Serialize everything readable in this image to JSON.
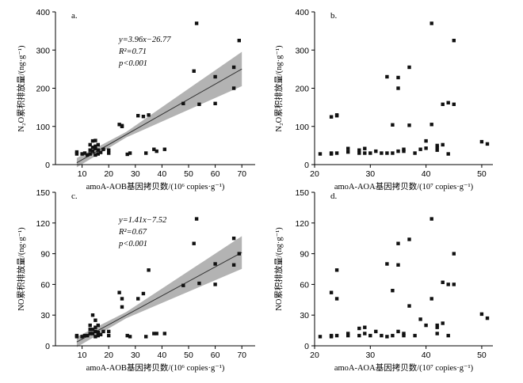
{
  "colors": {
    "point": "#111111",
    "band": "#a6a6a6",
    "fit": "#333333",
    "axis": "#000000"
  },
  "chart_data": [
    {
      "type": "scatter",
      "panel_label": "a.",
      "xlabel": "amoA-AOB基因拷贝数/(10⁶ copies·g⁻¹)",
      "ylabel": "N₂O累积排放量/(ng·g⁻¹)",
      "xlim": [
        0,
        75
      ],
      "ylim": [
        0,
        400
      ],
      "xticks": [
        10,
        20,
        30,
        40,
        50,
        60,
        70
      ],
      "yticks": [
        0,
        100,
        200,
        300,
        400
      ],
      "fit": {
        "slope": 3.96,
        "intercept": -26.77,
        "x_range": [
          8,
          70
        ],
        "ci_halfwidth_left": 12,
        "ci_halfwidth_right": 45
      },
      "equation": [
        "y=3.96x−26.77",
        "R²=0.71",
        "p<0.001"
      ],
      "points": [
        [
          8,
          33
        ],
        [
          8,
          28
        ],
        [
          10,
          28
        ],
        [
          11,
          30
        ],
        [
          12,
          25
        ],
        [
          13,
          28
        ],
        [
          13,
          38
        ],
        [
          13,
          52
        ],
        [
          14,
          62
        ],
        [
          14,
          45
        ],
        [
          14,
          35
        ],
        [
          15,
          42
        ],
        [
          15,
          48
        ],
        [
          15,
          63
        ],
        [
          15,
          25
        ],
        [
          16,
          28
        ],
        [
          16,
          38
        ],
        [
          16,
          52
        ],
        [
          17,
          32
        ],
        [
          18,
          40
        ],
        [
          20,
          38
        ],
        [
          20,
          30
        ],
        [
          24,
          105
        ],
        [
          25,
          100
        ],
        [
          25,
          102
        ],
        [
          27,
          27
        ],
        [
          28,
          30
        ],
        [
          31,
          128
        ],
        [
          33,
          126
        ],
        [
          34,
          30
        ],
        [
          35,
          130
        ],
        [
          37,
          40
        ],
        [
          38,
          35
        ],
        [
          41,
          40
        ],
        [
          48,
          160
        ],
        [
          52,
          245
        ],
        [
          53,
          370
        ],
        [
          54,
          158
        ],
        [
          60,
          230
        ],
        [
          60,
          160
        ],
        [
          67,
          255
        ],
        [
          67,
          200
        ],
        [
          69,
          325
        ]
      ]
    },
    {
      "type": "scatter",
      "panel_label": "b.",
      "xlabel": "amoA-AOA基因拷贝数/(10⁷ copies·g⁻¹)",
      "ylabel": "N₂O累积排放量/(ng·g⁻¹)",
      "xlim": [
        20,
        52
      ],
      "ylim": [
        0,
        400
      ],
      "xticks": [
        20,
        30,
        40,
        50
      ],
      "yticks": [
        0,
        100,
        200,
        300,
        400
      ],
      "points": [
        [
          21,
          28
        ],
        [
          23,
          28
        ],
        [
          23,
          125
        ],
        [
          23,
          30
        ],
        [
          24,
          130
        ],
        [
          24,
          128
        ],
        [
          24,
          30
        ],
        [
          26,
          33
        ],
        [
          26,
          42
        ],
        [
          28,
          38
        ],
        [
          28,
          30
        ],
        [
          29,
          42
        ],
        [
          29,
          30
        ],
        [
          30,
          30
        ],
        [
          31,
          35
        ],
        [
          32,
          30
        ],
        [
          33,
          230
        ],
        [
          33,
          30
        ],
        [
          34,
          104
        ],
        [
          34,
          30
        ],
        [
          35,
          228
        ],
        [
          35,
          35
        ],
        [
          35,
          200
        ],
        [
          36,
          40
        ],
        [
          36,
          35
        ],
        [
          37,
          255
        ],
        [
          37,
          103
        ],
        [
          38,
          30
        ],
        [
          39,
          40
        ],
        [
          40,
          62
        ],
        [
          40,
          43
        ],
        [
          41,
          370
        ],
        [
          41,
          105
        ],
        [
          42,
          50
        ],
        [
          42,
          45
        ],
        [
          42,
          38
        ],
        [
          43,
          158
        ],
        [
          43,
          52
        ],
        [
          44,
          162
        ],
        [
          44,
          28
        ],
        [
          45,
          325
        ],
        [
          45,
          158
        ],
        [
          50,
          60
        ],
        [
          51,
          54
        ]
      ]
    },
    {
      "type": "scatter",
      "panel_label": "c.",
      "xlabel": "amoA-AOB基因拷贝数/(10⁶ copies·g⁻¹)",
      "ylabel": "NO累积排放量/(ng·g⁻¹)",
      "xlim": [
        0,
        75
      ],
      "ylim": [
        0,
        150
      ],
      "xticks": [
        10,
        20,
        30,
        40,
        50,
        60,
        70
      ],
      "yticks": [
        0,
        30,
        60,
        90,
        120,
        150
      ],
      "fit": {
        "slope": 1.41,
        "intercept": -7.52,
        "x_range": [
          8,
          70
        ],
        "ci_halfwidth_left": 5,
        "ci_halfwidth_right": 16
      },
      "equation": [
        "y=1.41x−7.52",
        "R²=0.67",
        "p<0.001"
      ],
      "points": [
        [
          8,
          10
        ],
        [
          8,
          9
        ],
        [
          10,
          9
        ],
        [
          11,
          10
        ],
        [
          12,
          10
        ],
        [
          13,
          12
        ],
        [
          13,
          16
        ],
        [
          13,
          20
        ],
        [
          14,
          30
        ],
        [
          14,
          16
        ],
        [
          14,
          12
        ],
        [
          15,
          14
        ],
        [
          15,
          18
        ],
        [
          15,
          25
        ],
        [
          15,
          9
        ],
        [
          16,
          10
        ],
        [
          16,
          13
        ],
        [
          16,
          20
        ],
        [
          17,
          11
        ],
        [
          18,
          14
        ],
        [
          20,
          14
        ],
        [
          20,
          10
        ],
        [
          24,
          52
        ],
        [
          25,
          38
        ],
        [
          25,
          46
        ],
        [
          27,
          10
        ],
        [
          28,
          9
        ],
        [
          31,
          46
        ],
        [
          33,
          51
        ],
        [
          34,
          9
        ],
        [
          35,
          74
        ],
        [
          37,
          12
        ],
        [
          38,
          12
        ],
        [
          41,
          12
        ],
        [
          48,
          59
        ],
        [
          52,
          100
        ],
        [
          53,
          124
        ],
        [
          54,
          61
        ],
        [
          60,
          80
        ],
        [
          60,
          60
        ],
        [
          67,
          105
        ],
        [
          67,
          79
        ],
        [
          69,
          90
        ]
      ]
    },
    {
      "type": "scatter",
      "panel_label": "d.",
      "xlabel": "amoA-AOA基因拷贝数/(10⁷ copies·g⁻¹)",
      "ylabel": "NO累积排放量/(ng·g⁻¹)",
      "xlim": [
        20,
        52
      ],
      "ylim": [
        0,
        150
      ],
      "xticks": [
        20,
        30,
        40,
        50
      ],
      "yticks": [
        0,
        30,
        60,
        90,
        120,
        150
      ],
      "points": [
        [
          21,
          9
        ],
        [
          23,
          9
        ],
        [
          23,
          52
        ],
        [
          23,
          10
        ],
        [
          24,
          74
        ],
        [
          24,
          46
        ],
        [
          24,
          10
        ],
        [
          26,
          10
        ],
        [
          26,
          12
        ],
        [
          28,
          17
        ],
        [
          28,
          10
        ],
        [
          29,
          18
        ],
        [
          29,
          12
        ],
        [
          30,
          10
        ],
        [
          31,
          14
        ],
        [
          32,
          10
        ],
        [
          33,
          80
        ],
        [
          33,
          9
        ],
        [
          34,
          54
        ],
        [
          34,
          10
        ],
        [
          35,
          100
        ],
        [
          35,
          14
        ],
        [
          35,
          79
        ],
        [
          36,
          12
        ],
        [
          36,
          10
        ],
        [
          37,
          104
        ],
        [
          37,
          39
        ],
        [
          38,
          10
        ],
        [
          39,
          26
        ],
        [
          40,
          20
        ],
        [
          41,
          124
        ],
        [
          41,
          46
        ],
        [
          42,
          20
        ],
        [
          42,
          18
        ],
        [
          42,
          12
        ],
        [
          43,
          62
        ],
        [
          43,
          22
        ],
        [
          44,
          60
        ],
        [
          44,
          10
        ],
        [
          45,
          90
        ],
        [
          45,
          60
        ],
        [
          50,
          31
        ],
        [
          51,
          27
        ]
      ]
    }
  ]
}
